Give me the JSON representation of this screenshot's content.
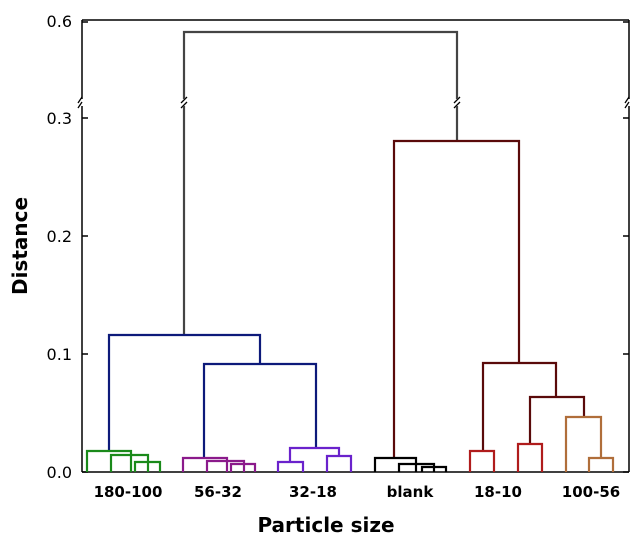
{
  "chart_data": {
    "type": "dendrogram",
    "xlabel": "Particle size",
    "ylabel": "Distance",
    "y_ticks": [
      "0.0",
      "0.1",
      "0.2",
      "0.3",
      "0.6"
    ],
    "y_axis_break": "between 0.3 and 0.6",
    "categories": [
      "180-100",
      "56-32",
      "32-18",
      "blank",
      "18-10",
      "100-56"
    ],
    "clusters": [
      {
        "name": "180-100",
        "color": "#1a8a1a",
        "merge_heights": [
          0.018,
          0.014,
          0.008
        ]
      },
      {
        "name": "56-32",
        "color": "#8b1a8b",
        "merge_heights": [
          0.012,
          0.009,
          0.006
        ]
      },
      {
        "name": "32-18",
        "color": "#6a22cc",
        "merge_heights": [
          0.02,
          0.008,
          0.013
        ]
      },
      {
        "name": "blank",
        "color": "#000000",
        "merge_heights": [
          0.012,
          0.007,
          0.004
        ]
      },
      {
        "name": "18-10",
        "color": "#b01c1c",
        "merge_heights": [
          0.017,
          0.023
        ]
      },
      {
        "name": "100-56",
        "color": "#b06e3a",
        "merge_heights": [
          0.047,
          0.012
        ]
      }
    ],
    "merges": [
      {
        "joins": [
          "56-32",
          "32-18"
        ],
        "height": 0.091,
        "color": "#0d1a7a"
      },
      {
        "joins": [
          "180-100",
          "56-32+32-18"
        ],
        "height": 0.115,
        "color": "#0d1a7a"
      },
      {
        "joins": [
          "18-10",
          "100-56"
        ],
        "height": 0.064,
        "color": "#5a0a0a"
      },
      {
        "joins": [
          "blank+18-10+100-56 lower"
        ],
        "height": 0.092,
        "color": "#5a0a0a"
      },
      {
        "joins": [
          "blank",
          "18-10+100-56"
        ],
        "height": 0.28,
        "color": "#5a0a0a"
      },
      {
        "joins": [
          "left group",
          "right group"
        ],
        "height": 0.59,
        "color": "#444444"
      }
    ]
  }
}
